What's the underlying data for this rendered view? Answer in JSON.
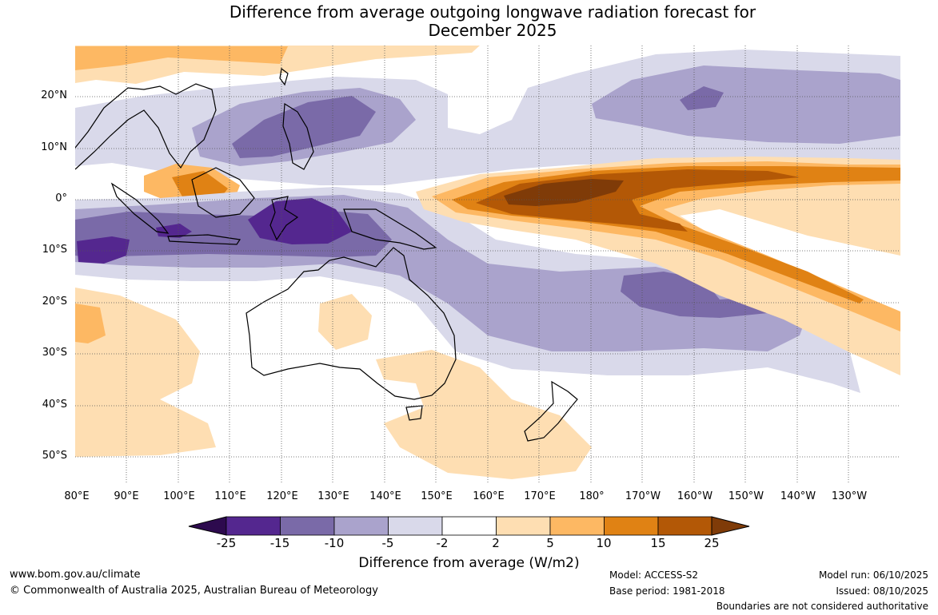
{
  "title_line1": "Difference from average outgoing longwave radiation forecast for",
  "title_line2": "December 2025",
  "lat_labels": [
    "20°N",
    "10°N",
    "0°",
    "10°S",
    "20°S",
    "30°S",
    "40°S",
    "50°S"
  ],
  "lon_labels": [
    "80°E",
    "90°E",
    "100°E",
    "110°E",
    "120°E",
    "130°E",
    "140°E",
    "150°E",
    "160°E",
    "170°E",
    "180°",
    "170°W",
    "160°W",
    "150°W",
    "140°W",
    "130°W"
  ],
  "colorbar": {
    "ticks": [
      "-25",
      "-15",
      "-10",
      "-5",
      "-2",
      "2",
      "5",
      "10",
      "15",
      "25"
    ],
    "colors": [
      "#2d0a4e",
      "#54278f",
      "#7a6aa8",
      "#aaa3cc",
      "#d9d9ea",
      "#ffffff",
      "#fedeb2",
      "#fdb863",
      "#e08214",
      "#b35806",
      "#7f3b08"
    ],
    "label": "Difference from average (W/m2)"
  },
  "footer": {
    "website": "www.bom.gov.au/climate",
    "copyright": "© Commonwealth of Australia 2025, Australian Bureau of Meteorology",
    "model": "Model: ACCESS-S2",
    "base_period": "Base period: 1981-2018",
    "model_run": "Model run: 06/10/2025",
    "issued": "Issued: 08/10/2025",
    "disclaimer": "Boundaries are not considered authoritative"
  }
}
